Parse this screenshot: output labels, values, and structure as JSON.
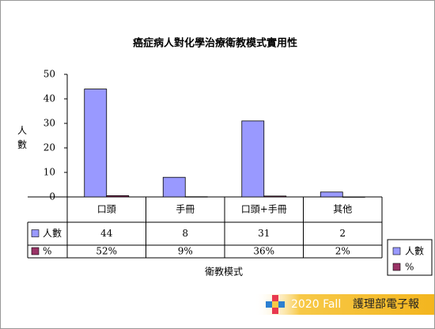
{
  "chart_data": {
    "type": "bar",
    "title": "癌症病人對化學治療衛教模式實用性",
    "y_label": "人數",
    "x_label": "衛教模式",
    "categories": [
      "口頭",
      "手冊",
      "口頭+手冊",
      "其他"
    ],
    "series": [
      {
        "name": "人數",
        "color": "#9999ff",
        "values": [
          44,
          8,
          31,
          2
        ]
      },
      {
        "name": "%",
        "color": "#993366",
        "values": [
          0.52,
          0.09,
          0.36,
          0.02
        ],
        "value_labels": [
          "52%",
          "9%",
          "36%",
          "2%"
        ]
      }
    ],
    "ylim": [
      0,
      50
    ],
    "yticks": [
      0,
      10,
      20,
      30,
      40,
      50
    ],
    "grid": false,
    "legend": "right",
    "data_table": true
  },
  "footer": {
    "year": "2020 Fall",
    "text": "護理部電子報"
  }
}
